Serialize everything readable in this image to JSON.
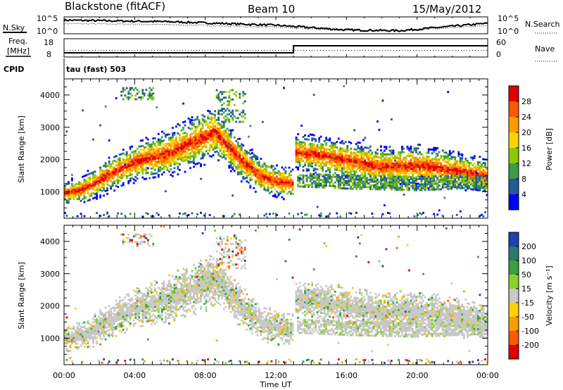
{
  "header": {
    "station": "Blackstone (fitACF)",
    "beam": "Beam 10",
    "date": "15/May/2012"
  },
  "top_panels": {
    "nsky_label": "N.Sky",
    "nsearch_label": "N.Search",
    "freq_label_line1": "Freq.",
    "freq_label_line2": "[MHz]",
    "nave_label": "Nave",
    "cpid_label": "CPID",
    "cpid_value": "tau (fast) 503",
    "noise_ticks_left": [
      "10^5",
      "10^0"
    ],
    "noise_ticks_right": [
      "10^5",
      "10^0"
    ],
    "freq_ticks": [
      "18",
      "8"
    ],
    "nave_ticks": [
      "60",
      "0"
    ]
  },
  "colorbars": {
    "power": {
      "title": "Power [dB]",
      "ticks": [
        "28",
        "24",
        "20",
        "16",
        "12",
        "8",
        "4"
      ],
      "colors": [
        "#e00000",
        "#ff5a00",
        "#ff9c00",
        "#ffd200",
        "#8fc800",
        "#3d9a4a",
        "#245a9a",
        "#0000ff"
      ]
    },
    "velocity": {
      "title": "Velocity [m s⁻¹]",
      "ticks": [
        "200",
        "100",
        "50",
        "15",
        "-15",
        "-50",
        "-100",
        "-200"
      ],
      "colors": [
        "#2040b0",
        "#2a7a70",
        "#3aa040",
        "#8ccf30",
        "#c8c8c8",
        "#ffd200",
        "#ff9c00",
        "#ff5a00",
        "#e00000"
      ]
    }
  },
  "chart_data": {
    "type": "heatmap",
    "x_axis": {
      "title": "Time UT",
      "range_hours": [
        0,
        24
      ],
      "tick_labels": [
        "00:00",
        "04:00",
        "08:00",
        "12:00",
        "16:00",
        "20:00",
        "00:00"
      ]
    },
    "y_axis": {
      "title": "Slant Range [km]",
      "range_km": [
        180,
        4500
      ],
      "tick_labels": [
        "1000",
        "2000",
        "3000",
        "4000"
      ]
    },
    "data_gap_hours": [
      12.95,
      13.05
    ],
    "freq_mhz": [
      {
        "from": 0,
        "to": 13,
        "value": 10
      },
      {
        "from": 13,
        "to": 24,
        "value": 14
      }
    ],
    "nave": [
      {
        "from": 0,
        "to": 24,
        "value": 20
      }
    ],
    "scatter_band": [
      {
        "t": 0.0,
        "center": 1000,
        "width": 200
      },
      {
        "t": 1.0,
        "center": 1100,
        "width": 260
      },
      {
        "t": 2.0,
        "center": 1400,
        "width": 300
      },
      {
        "t": 3.0,
        "center": 1700,
        "width": 320
      },
      {
        "t": 4.0,
        "center": 1950,
        "width": 350
      },
      {
        "t": 5.0,
        "center": 2100,
        "width": 380
      },
      {
        "t": 6.0,
        "center": 2250,
        "width": 420
      },
      {
        "t": 7.0,
        "center": 2500,
        "width": 450
      },
      {
        "t": 8.0,
        "center": 2750,
        "width": 480
      },
      {
        "t": 8.5,
        "center": 2900,
        "width": 450
      },
      {
        "t": 9.0,
        "center": 2600,
        "width": 400
      },
      {
        "t": 10.0,
        "center": 2000,
        "width": 360
      },
      {
        "t": 11.0,
        "center": 1550,
        "width": 320
      },
      {
        "t": 12.0,
        "center": 1350,
        "width": 300
      },
      {
        "t": 12.9,
        "center": 1300,
        "width": 280
      },
      {
        "t": 13.1,
        "center": 2250,
        "width": 320
      },
      {
        "t": 14.0,
        "center": 2200,
        "width": 340
      },
      {
        "t": 16.0,
        "center": 2000,
        "width": 360
      },
      {
        "t": 18.0,
        "center": 1800,
        "width": 360
      },
      {
        "t": 20.0,
        "center": 1850,
        "width": 380
      },
      {
        "t": 22.0,
        "center": 1700,
        "width": 350
      },
      {
        "t": 24.0,
        "center": 1500,
        "width": 320
      }
    ],
    "lower_band": [
      {
        "t": 13.2,
        "center": 1400,
        "width": 200
      },
      {
        "t": 16.0,
        "center": 1350,
        "width": 220
      },
      {
        "t": 20.0,
        "center": 1300,
        "width": 220
      },
      {
        "t": 23.0,
        "center": 1350,
        "width": 200
      }
    ],
    "high_patches": [
      {
        "t0": 3.2,
        "t1": 5.0,
        "r0": 3900,
        "r1": 4300
      },
      {
        "t0": 8.6,
        "t1": 10.2,
        "r0": 3200,
        "r1": 4200
      }
    ],
    "power_peak_db": 30,
    "velocity_dominant_ms": 0,
    "noise_level_trend": [
      {
        "t": 0,
        "v": 0.88
      },
      {
        "t": 6,
        "v": 0.78
      },
      {
        "t": 12,
        "v": 0.55
      },
      {
        "t": 16,
        "v": 0.25
      },
      {
        "t": 19,
        "v": 0.2
      },
      {
        "t": 24,
        "v": 0.68
      }
    ]
  }
}
